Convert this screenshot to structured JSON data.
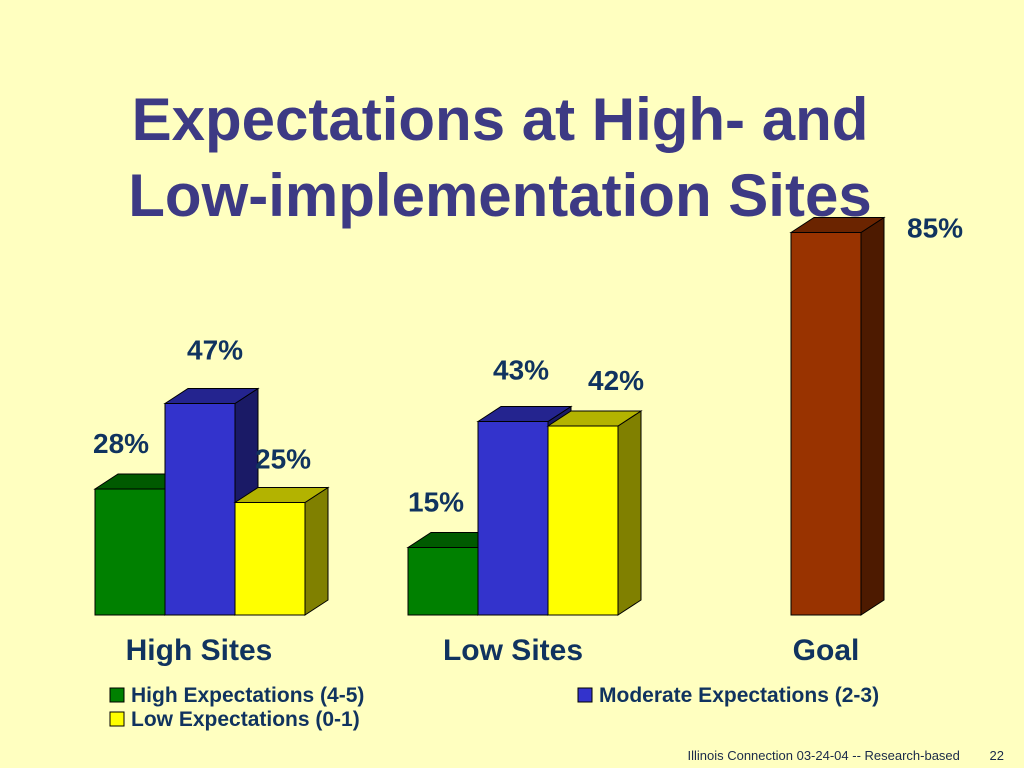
{
  "slide": {
    "title_line1": "Expectations at High- and",
    "title_line2": "Low-implementation Sites",
    "footer_text": "Illinois Connection 03-24-04 -- Research-based",
    "page_number": "22"
  },
  "chart_data": {
    "type": "bar",
    "categories": [
      "High Sites",
      "Low Sites",
      "Goal"
    ],
    "series": [
      {
        "name": "High Expectations (4-5)",
        "color": "#008000",
        "values": [
          28,
          15,
          null
        ]
      },
      {
        "name": "Moderate Expectations (2-3)",
        "color": "#3333cc",
        "values": [
          47,
          43,
          null
        ]
      },
      {
        "name": "Low Expectations (0-1)",
        "color": "#ffff00",
        "values": [
          25,
          42,
          null
        ]
      }
    ],
    "goal": {
      "value": 85,
      "color": "#993300"
    },
    "value_suffix": "%",
    "ylim": [
      0,
      100
    ],
    "grid": false,
    "legend_position": "bottom",
    "style": "3d-bars"
  }
}
